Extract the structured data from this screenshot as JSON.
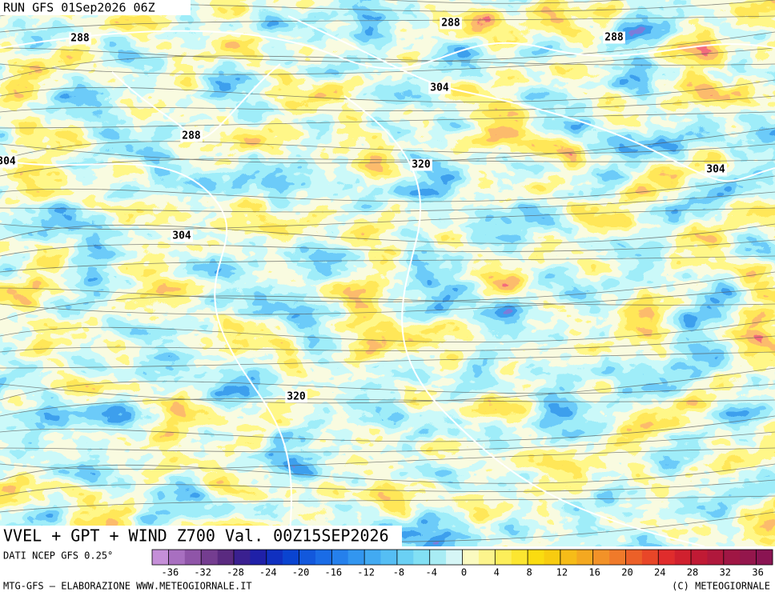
{
  "header": {
    "run": "RUN GFS 01Sep2026 06Z"
  },
  "map": {
    "title": "VVEL + GPT + WIND Z700 Val. 00Z15SEP2026",
    "contour_labels": [
      288,
      288,
      288,
      304,
      288,
      320,
      304,
      304,
      304,
      320
    ]
  },
  "legend": {
    "source": "DATI NCEP GFS 0.25°",
    "range": [
      -38,
      38
    ],
    "colors": [
      "#c58fd8",
      "#a86fc0",
      "#8f55a8",
      "#743d90",
      "#5a2a80",
      "#3a2090",
      "#1f20a8",
      "#1030c0",
      "#0a44d0",
      "#1258dc",
      "#1a6ce6",
      "#2580ec",
      "#3296f0",
      "#42aaf2",
      "#55bef4",
      "#6ad0f4",
      "#82e0f4",
      "#a8ecf4",
      "#d6f6f6",
      "#fafac0",
      "#fcf48c",
      "#fcee5a",
      "#fce630",
      "#fadc10",
      "#f8cc10",
      "#f6bc18",
      "#f4a820",
      "#f29228",
      "#f07a2a",
      "#ec6028",
      "#e84628",
      "#e02c2c",
      "#d0202e",
      "#c01a34",
      "#b0183c",
      "#a01644",
      "#94164c",
      "#8a1452"
    ],
    "ticks": [
      -36,
      -32,
      -28,
      -24,
      -20,
      -16,
      -12,
      -8,
      -4,
      0,
      4,
      8,
      12,
      16,
      20,
      24,
      28,
      32,
      36
    ]
  },
  "footer": {
    "left": "MTG-GFS — ELABORAZIONE WWW.METEOGIORNALE.IT",
    "right": "(C) METEOGIORNALE"
  }
}
